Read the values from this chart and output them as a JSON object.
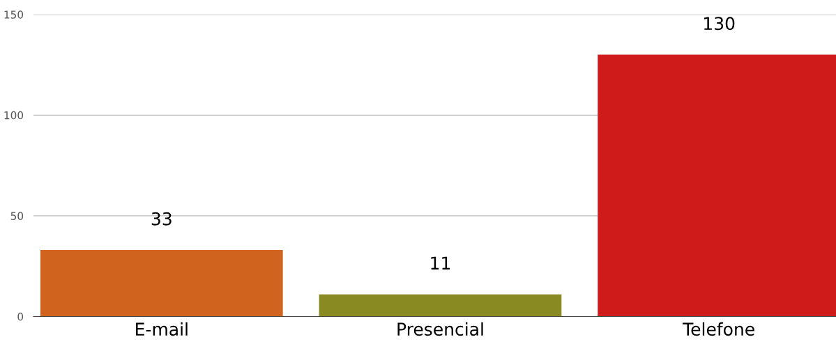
{
  "chart_data": {
    "type": "bar",
    "categories": [
      "E-mail",
      "Presencial",
      "Telefone"
    ],
    "values": [
      33,
      11,
      130
    ],
    "colors": [
      "#d0641f",
      "#8a8a22",
      "#cf1b1a"
    ],
    "ylim": [
      0,
      150
    ],
    "yticks": [
      0,
      50,
      100,
      150
    ],
    "grid": "y",
    "data_labels": true
  }
}
